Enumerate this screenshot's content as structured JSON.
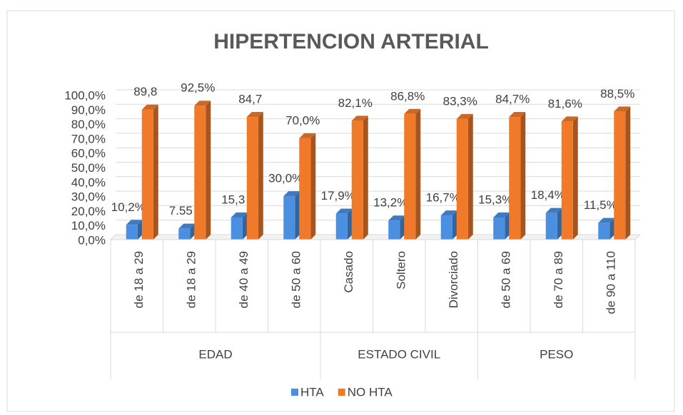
{
  "chart_data": {
    "type": "bar3d",
    "title": "HIPERTENCION ARTERIAL",
    "groups": [
      {
        "name": "EDAD",
        "categories": [
          "de 18 a 29",
          "de 18 a 29",
          "de 40 a 49",
          "de 50 a 60"
        ]
      },
      {
        "name": "ESTADO CIVIL",
        "categories": [
          "Casado",
          "Soltero",
          "Divorciado"
        ]
      },
      {
        "name": "PESO",
        "categories": [
          "de 50 a 69",
          "de 70 a 89",
          "de 90 a 110"
        ]
      }
    ],
    "series": [
      {
        "name": "HTA",
        "color": "#4a8fe0",
        "values": [
          10.2,
          7.55,
          15.3,
          30.0,
          17.9,
          13.2,
          16.7,
          15.3,
          18.4,
          11.5
        ],
        "value_labels": [
          "10,2%",
          "7.55",
          "15,3",
          "30,0%",
          "17,9%",
          "13,2%",
          "16,7%",
          "15,3%",
          "18,4%",
          "11,5%"
        ]
      },
      {
        "name": "NO HTA",
        "color": "#f07a2a",
        "values": [
          89.8,
          92.5,
          84.7,
          70.0,
          82.1,
          86.8,
          83.3,
          84.7,
          81.6,
          88.5
        ],
        "value_labels": [
          "89,8",
          "92,5%",
          "84,7",
          "70,0%",
          "82,1%",
          "86,8%",
          "83,3%",
          "84,7%",
          "81,6%",
          "88,5%"
        ]
      }
    ],
    "ylim": [
      0,
      100
    ],
    "yticks": [
      {
        "value": 0,
        "label": "0,0%"
      },
      {
        "value": 10,
        "label": "10,0%"
      },
      {
        "value": 20,
        "label": "20,0%"
      },
      {
        "value": 30,
        "label": "30,0%"
      },
      {
        "value": 40,
        "label": "40,0%"
      },
      {
        "value": 50,
        "label": "50,0%"
      },
      {
        "value": 60,
        "label": "60,0%"
      },
      {
        "value": 70,
        "label": "70,0%"
      },
      {
        "value": 80,
        "label": "80,0%"
      },
      {
        "value": 90,
        "label": "90,0%"
      },
      {
        "value": 100,
        "label": "100,0%"
      }
    ],
    "grid": true,
    "legend": "bottom"
  }
}
